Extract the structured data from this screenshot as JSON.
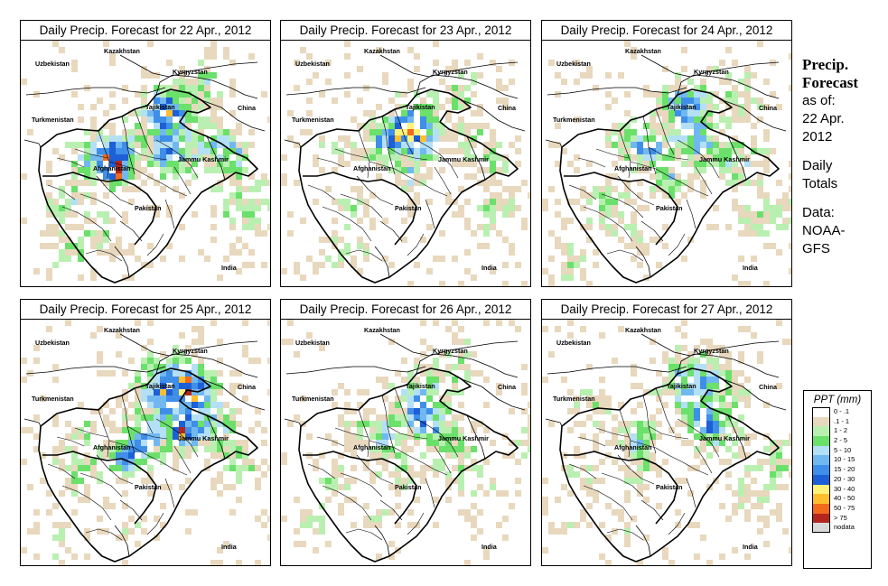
{
  "panels": [
    {
      "title": "Daily Precip. Forecast for  22 Apr., 2012",
      "seed": 11,
      "intensity": 1.0
    },
    {
      "title": "Daily Precip. Forecast for  23 Apr., 2012",
      "seed": 23,
      "intensity": 0.75
    },
    {
      "title": "Daily Precip. Forecast for  24 Apr., 2012",
      "seed": 37,
      "intensity": 0.8
    },
    {
      "title": "Daily Precip. Forecast for  25 Apr., 2012",
      "seed": 41,
      "intensity": 0.95
    },
    {
      "title": "Daily Precip. Forecast for  26 Apr., 2012",
      "seed": 59,
      "intensity": 0.7
    },
    {
      "title": "Daily Precip. Forecast for  27 Apr., 2012",
      "seed": 67,
      "intensity": 0.7
    }
  ],
  "map_labels": {
    "kazakhstan": "Kazakhstan",
    "uzbekistan": "Uzbekistan",
    "kyrgyzstan": "Kyrgyzstan",
    "tajikistan": "Tajikistan",
    "turkmenistan": "Turkmenistan",
    "china": "China",
    "afghanistan": "Afghanistan",
    "jammu_kashmir": "Jammu Kashmir",
    "pakistan": "Pakistan",
    "india": "India"
  },
  "side": {
    "title_line1": "Precip.",
    "title_line2": "Forecast",
    "asof_line1": "as of:",
    "asof_line2": "22 Apr.",
    "asof_line3": "2012",
    "daily_line1": "Daily",
    "daily_line2": "Totals",
    "data_line1": "Data:",
    "data_line2": "NOAA-",
    "data_line3": "GFS"
  },
  "legend": {
    "title": "PPT (mm)",
    "items": [
      {
        "label": "0 - .1",
        "color": "#ffffff"
      },
      {
        "label": ".1 - 1",
        "color": "#e8d8bd"
      },
      {
        "label": "1 - 2",
        "color": "#b9f0b1"
      },
      {
        "label": "2 - 5",
        "color": "#6be06b"
      },
      {
        "label": "5 - 10",
        "color": "#b3e0f7"
      },
      {
        "label": "10 - 15",
        "color": "#71b8f0"
      },
      {
        "label": "15 - 20",
        "color": "#3f8ee8"
      },
      {
        "label": "20 - 30",
        "color": "#1c5fd6"
      },
      {
        "label": "30 - 40",
        "color": "#fff27a"
      },
      {
        "label": "40 - 50",
        "color": "#ffbe2e"
      },
      {
        "label": "50 - 75",
        "color": "#f26b1c"
      },
      {
        "label": "> 75",
        "color": "#b3261e"
      },
      {
        "label": "nodata",
        "color": "#d9d9d9"
      }
    ]
  }
}
